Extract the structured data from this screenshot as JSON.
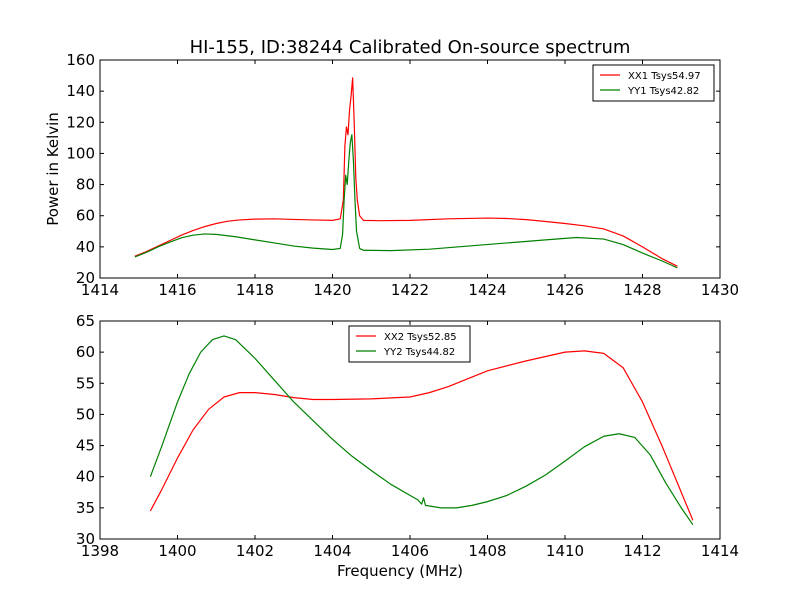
{
  "figure": {
    "title": "HI-155, ID:38244 Calibrated On-source spectrum"
  },
  "chart_data": [
    {
      "type": "line",
      "title": "HI-155, ID:38244 Calibrated On-source spectrum",
      "xlabel": "",
      "ylabel": "Power in Kelvin",
      "xlim": [
        1414,
        1430
      ],
      "ylim": [
        20,
        160
      ],
      "xticks": [
        1414,
        1416,
        1418,
        1420,
        1422,
        1424,
        1426,
        1428,
        1430
      ],
      "yticks": [
        20,
        40,
        60,
        80,
        100,
        120,
        140,
        160
      ],
      "grid": false,
      "legend_position": "top-right",
      "series": [
        {
          "name": "XX1 Tsys54.97",
          "color": "#ff0000",
          "points": [
            [
              1414.9,
              34
            ],
            [
              1415.2,
              37
            ],
            [
              1415.5,
              40.5
            ],
            [
              1415.8,
              44
            ],
            [
              1416.1,
              47.5
            ],
            [
              1416.4,
              50.5
            ],
            [
              1416.7,
              53
            ],
            [
              1417.0,
              55
            ],
            [
              1417.3,
              56.5
            ],
            [
              1417.6,
              57.3
            ],
            [
              1418.0,
              57.8
            ],
            [
              1418.5,
              58
            ],
            [
              1419.0,
              57.6
            ],
            [
              1419.5,
              57.3
            ],
            [
              1420.0,
              57
            ],
            [
              1420.2,
              58
            ],
            [
              1420.28,
              70
            ],
            [
              1420.32,
              105
            ],
            [
              1420.36,
              117
            ],
            [
              1420.4,
              112
            ],
            [
              1420.44,
              128
            ],
            [
              1420.48,
              137
            ],
            [
              1420.52,
              148.5
            ],
            [
              1420.56,
              120
            ],
            [
              1420.6,
              85
            ],
            [
              1420.64,
              70
            ],
            [
              1420.7,
              60
            ],
            [
              1420.8,
              57
            ],
            [
              1421.2,
              56.8
            ],
            [
              1422.0,
              57
            ],
            [
              1423.0,
              58
            ],
            [
              1424.0,
              58.5
            ],
            [
              1424.5,
              58.2
            ],
            [
              1425.0,
              57.5
            ],
            [
              1425.5,
              56.3
            ],
            [
              1426.0,
              55
            ],
            [
              1426.5,
              53.5
            ],
            [
              1427.0,
              51.5
            ],
            [
              1427.5,
              47
            ],
            [
              1428.0,
              40
            ],
            [
              1428.5,
              32.5
            ],
            [
              1428.9,
              27.5
            ]
          ]
        },
        {
          "name": "YY1 Tsys42.82",
          "color": "#008000",
          "points": [
            [
              1414.9,
              33.5
            ],
            [
              1415.2,
              36.5
            ],
            [
              1415.5,
              40
            ],
            [
              1415.8,
              43
            ],
            [
              1416.1,
              45.8
            ],
            [
              1416.4,
              47.5
            ],
            [
              1416.7,
              48.3
            ],
            [
              1417.0,
              48
            ],
            [
              1417.5,
              46.5
            ],
            [
              1418.0,
              44.5
            ],
            [
              1418.5,
              42.5
            ],
            [
              1419.0,
              40.5
            ],
            [
              1419.5,
              39.2
            ],
            [
              1420.0,
              38.3
            ],
            [
              1420.2,
              39
            ],
            [
              1420.26,
              48
            ],
            [
              1420.3,
              70
            ],
            [
              1420.34,
              86
            ],
            [
              1420.38,
              80
            ],
            [
              1420.42,
              95
            ],
            [
              1420.46,
              107
            ],
            [
              1420.5,
              112
            ],
            [
              1420.54,
              95
            ],
            [
              1420.58,
              70
            ],
            [
              1420.62,
              50
            ],
            [
              1420.7,
              39
            ],
            [
              1420.8,
              37.8
            ],
            [
              1421.5,
              37.6
            ],
            [
              1422.5,
              38.5
            ],
            [
              1423.5,
              40.5
            ],
            [
              1424.5,
              42.5
            ],
            [
              1425.5,
              44.5
            ],
            [
              1426.3,
              46
            ],
            [
              1427.0,
              45
            ],
            [
              1427.5,
              41.5
            ],
            [
              1428.0,
              36
            ],
            [
              1428.5,
              31
            ],
            [
              1428.9,
              26.5
            ]
          ]
        }
      ]
    },
    {
      "type": "line",
      "title": "",
      "xlabel": "Frequency (MHz)",
      "ylabel": "",
      "xlim": [
        1398,
        1414
      ],
      "ylim": [
        30,
        65
      ],
      "xticks": [
        1398,
        1400,
        1402,
        1404,
        1406,
        1408,
        1410,
        1412,
        1414
      ],
      "yticks": [
        30,
        35,
        40,
        45,
        50,
        55,
        60,
        65
      ],
      "grid": false,
      "legend_position": "top-center",
      "series": [
        {
          "name": "XX2 Tsys52.85",
          "color": "#ff0000",
          "points": [
            [
              1399.3,
              34.5
            ],
            [
              1399.6,
              38
            ],
            [
              1400.0,
              43
            ],
            [
              1400.4,
              47.5
            ],
            [
              1400.8,
              50.8
            ],
            [
              1401.2,
              52.8
            ],
            [
              1401.6,
              53.5
            ],
            [
              1402.0,
              53.5
            ],
            [
              1402.5,
              53.2
            ],
            [
              1403.0,
              52.7
            ],
            [
              1403.5,
              52.4
            ],
            [
              1404.0,
              52.4
            ],
            [
              1405.0,
              52.5
            ],
            [
              1406.0,
              52.8
            ],
            [
              1406.5,
              53.5
            ],
            [
              1407.0,
              54.5
            ],
            [
              1408.0,
              57
            ],
            [
              1409.0,
              58.6
            ],
            [
              1410.0,
              60
            ],
            [
              1410.5,
              60.2
            ],
            [
              1411.0,
              59.8
            ],
            [
              1411.5,
              57.5
            ],
            [
              1412.0,
              52
            ],
            [
              1412.5,
              45
            ],
            [
              1413.0,
              37.5
            ],
            [
              1413.3,
              33
            ]
          ]
        },
        {
          "name": "YY2 Tsys44.82",
          "color": "#008000",
          "points": [
            [
              1399.3,
              40
            ],
            [
              1399.6,
              45
            ],
            [
              1400.0,
              52
            ],
            [
              1400.3,
              56.5
            ],
            [
              1400.6,
              60
            ],
            [
              1400.9,
              62
            ],
            [
              1401.2,
              62.6
            ],
            [
              1401.5,
              62
            ],
            [
              1402.0,
              59
            ],
            [
              1402.5,
              55.5
            ],
            [
              1403.0,
              52
            ],
            [
              1403.5,
              49
            ],
            [
              1404.0,
              46
            ],
            [
              1404.5,
              43.3
            ],
            [
              1405.0,
              41
            ],
            [
              1405.5,
              38.8
            ],
            [
              1406.0,
              37
            ],
            [
              1406.2,
              36.3
            ],
            [
              1406.3,
              35.6
            ],
            [
              1406.35,
              36.6
            ],
            [
              1406.4,
              35.4
            ],
            [
              1406.8,
              35
            ],
            [
              1407.2,
              35
            ],
            [
              1407.6,
              35.4
            ],
            [
              1408.0,
              36
            ],
            [
              1408.5,
              37
            ],
            [
              1409.0,
              38.5
            ],
            [
              1409.5,
              40.3
            ],
            [
              1410.0,
              42.5
            ],
            [
              1410.5,
              44.8
            ],
            [
              1411.0,
              46.5
            ],
            [
              1411.4,
              46.9
            ],
            [
              1411.8,
              46.3
            ],
            [
              1412.2,
              43.5
            ],
            [
              1412.6,
              39
            ],
            [
              1413.0,
              35
            ],
            [
              1413.3,
              32.3
            ]
          ]
        }
      ]
    }
  ]
}
